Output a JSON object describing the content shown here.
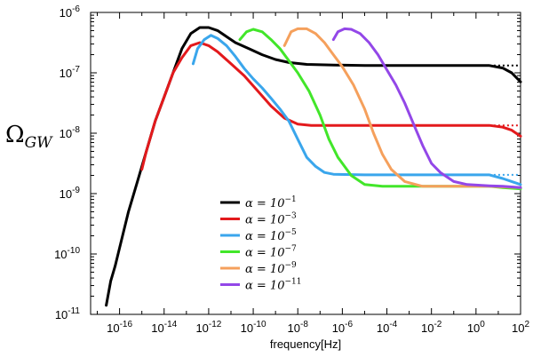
{
  "chart_data": {
    "type": "line",
    "title": "",
    "xlabel": "frequency[Hz]",
    "ylabel_main": "Ω",
    "ylabel_sub": "GW",
    "xscale": "log",
    "yscale": "log",
    "xlim_exp": [
      -17.3,
      2
    ],
    "ylim_exp": [
      -11,
      -6
    ],
    "xticks": [
      {
        "exp": -16,
        "base": "10",
        "sup": "-16"
      },
      {
        "exp": -14,
        "base": "10",
        "sup": "-14"
      },
      {
        "exp": -12,
        "base": "10",
        "sup": "-12"
      },
      {
        "exp": -10,
        "base": "10",
        "sup": "-10"
      },
      {
        "exp": -8,
        "base": "10",
        "sup": "-8"
      },
      {
        "exp": -6,
        "base": "10",
        "sup": "-6"
      },
      {
        "exp": -4,
        "base": "10",
        "sup": "-4"
      },
      {
        "exp": -2,
        "base": "10",
        "sup": "-2"
      },
      {
        "exp": 0,
        "base": "10",
        "sup": "0"
      },
      {
        "exp": 2,
        "base": "10",
        "sup": "2"
      }
    ],
    "yticks": [
      {
        "exp": -11,
        "base": "10",
        "sup": "-11"
      },
      {
        "exp": -10,
        "base": "10",
        "sup": "-10"
      },
      {
        "exp": -9,
        "base": "10",
        "sup": "-9"
      },
      {
        "exp": -8,
        "base": "10",
        "sup": "-8"
      },
      {
        "exp": -7,
        "base": "10",
        "sup": "-7"
      },
      {
        "exp": -6,
        "base": "10",
        "sup": "-6"
      }
    ],
    "grid": false,
    "legend_position": "lower-center",
    "series": [
      {
        "name": "α = 10",
        "name_sup": "−1",
        "color": "#000000",
        "points": [
          [
            -16.6,
            -10.85
          ],
          [
            -16.4,
            -10.45
          ],
          [
            -16.2,
            -10.2
          ],
          [
            -16.0,
            -9.9
          ],
          [
            -15.6,
            -9.3
          ],
          [
            -15.2,
            -8.8
          ],
          [
            -14.8,
            -8.3
          ],
          [
            -14.4,
            -7.8
          ],
          [
            -14.0,
            -7.4
          ],
          [
            -13.6,
            -7.0
          ],
          [
            -13.2,
            -6.6
          ],
          [
            -12.8,
            -6.35
          ],
          [
            -12.4,
            -6.25
          ],
          [
            -12.0,
            -6.25
          ],
          [
            -11.6,
            -6.3
          ],
          [
            -11.2,
            -6.4
          ],
          [
            -10.8,
            -6.5
          ],
          [
            -10.2,
            -6.6
          ],
          [
            -9.6,
            -6.7
          ],
          [
            -9.0,
            -6.78
          ],
          [
            -8.4,
            -6.83
          ],
          [
            -7.6,
            -6.86
          ],
          [
            -6.4,
            -6.87
          ],
          [
            -5.0,
            -6.88
          ],
          [
            -3.0,
            -6.88
          ],
          [
            -1.0,
            -6.88
          ],
          [
            0.6,
            -6.88
          ],
          [
            1.2,
            -6.92
          ],
          [
            1.6,
            -7.0
          ],
          [
            2.0,
            -7.15
          ]
        ],
        "dotted": [
          [
            0.6,
            -6.88
          ],
          [
            2.0,
            -6.88
          ]
        ]
      },
      {
        "name": "α = 10",
        "name_sup": "−3",
        "color": "#e3191c",
        "points": [
          [
            -15.0,
            -8.6
          ],
          [
            -14.8,
            -8.3
          ],
          [
            -14.4,
            -7.8
          ],
          [
            -14.0,
            -7.4
          ],
          [
            -13.6,
            -7.0
          ],
          [
            -13.2,
            -6.75
          ],
          [
            -12.8,
            -6.55
          ],
          [
            -12.4,
            -6.5
          ],
          [
            -12.0,
            -6.55
          ],
          [
            -11.6,
            -6.65
          ],
          [
            -11.0,
            -6.85
          ],
          [
            -10.4,
            -7.05
          ],
          [
            -9.8,
            -7.3
          ],
          [
            -9.2,
            -7.55
          ],
          [
            -8.6,
            -7.75
          ],
          [
            -8.0,
            -7.85
          ],
          [
            -7.4,
            -7.87
          ],
          [
            -6.0,
            -7.87
          ],
          [
            -3.0,
            -7.87
          ],
          [
            -1.0,
            -7.87
          ],
          [
            0.6,
            -7.87
          ],
          [
            1.2,
            -7.9
          ],
          [
            1.6,
            -7.95
          ],
          [
            2.0,
            -8.05
          ]
        ],
        "dotted": [
          [
            0.6,
            -7.87
          ],
          [
            2.0,
            -7.87
          ]
        ]
      },
      {
        "name": "α = 10",
        "name_sup": "−5",
        "color": "#3aa6ec",
        "points": [
          [
            -12.7,
            -6.85
          ],
          [
            -12.5,
            -6.6
          ],
          [
            -12.2,
            -6.45
          ],
          [
            -11.9,
            -6.38
          ],
          [
            -11.6,
            -6.43
          ],
          [
            -11.2,
            -6.55
          ],
          [
            -10.8,
            -6.73
          ],
          [
            -10.4,
            -6.93
          ],
          [
            -10.0,
            -7.1
          ],
          [
            -9.6,
            -7.25
          ],
          [
            -9.2,
            -7.42
          ],
          [
            -8.8,
            -7.6
          ],
          [
            -8.4,
            -7.8
          ],
          [
            -8.0,
            -8.1
          ],
          [
            -7.6,
            -8.4
          ],
          [
            -7.2,
            -8.55
          ],
          [
            -6.8,
            -8.65
          ],
          [
            -6.4,
            -8.68
          ],
          [
            -5.0,
            -8.69
          ],
          [
            -3.0,
            -8.69
          ],
          [
            -1.0,
            -8.69
          ],
          [
            0.6,
            -8.69
          ],
          [
            1.2,
            -8.75
          ],
          [
            1.6,
            -8.8
          ],
          [
            2.0,
            -8.85
          ]
        ],
        "dotted": [
          [
            0.6,
            -8.69
          ],
          [
            2.0,
            -8.69
          ]
        ]
      },
      {
        "name": "α = 10",
        "name_sup": "−7",
        "color": "#42e62a",
        "points": [
          [
            -10.6,
            -6.45
          ],
          [
            -10.3,
            -6.32
          ],
          [
            -10.0,
            -6.28
          ],
          [
            -9.6,
            -6.32
          ],
          [
            -9.2,
            -6.45
          ],
          [
            -8.8,
            -6.6
          ],
          [
            -8.4,
            -6.8
          ],
          [
            -8.0,
            -7.0
          ],
          [
            -7.5,
            -7.3
          ],
          [
            -7.0,
            -7.7
          ],
          [
            -6.6,
            -8.1
          ],
          [
            -6.2,
            -8.4
          ],
          [
            -5.6,
            -8.7
          ],
          [
            -5.0,
            -8.85
          ],
          [
            -4.2,
            -8.88
          ],
          [
            -2.5,
            -8.88
          ],
          [
            -1.0,
            -8.88
          ],
          [
            0.6,
            -8.88
          ],
          [
            1.2,
            -8.9
          ],
          [
            2.0,
            -8.92
          ]
        ]
      },
      {
        "name": "α = 10",
        "name_sup": "−9",
        "color": "#f5a05c",
        "points": [
          [
            -8.6,
            -6.55
          ],
          [
            -8.3,
            -6.32
          ],
          [
            -8.0,
            -6.27
          ],
          [
            -7.6,
            -6.27
          ],
          [
            -7.2,
            -6.35
          ],
          [
            -6.8,
            -6.5
          ],
          [
            -6.4,
            -6.7
          ],
          [
            -6.0,
            -6.9
          ],
          [
            -5.5,
            -7.2
          ],
          [
            -5.0,
            -7.6
          ],
          [
            -4.6,
            -8.0
          ],
          [
            -4.2,
            -8.35
          ],
          [
            -3.8,
            -8.6
          ],
          [
            -3.2,
            -8.8
          ],
          [
            -2.4,
            -8.88
          ],
          [
            -1.0,
            -8.88
          ],
          [
            0.6,
            -8.88
          ],
          [
            1.2,
            -8.89
          ],
          [
            2.0,
            -8.9
          ]
        ]
      },
      {
        "name": "α = 10",
        "name_sup": "−11",
        "color": "#9347e8",
        "points": [
          [
            -6.4,
            -6.45
          ],
          [
            -6.2,
            -6.32
          ],
          [
            -5.9,
            -6.27
          ],
          [
            -5.6,
            -6.28
          ],
          [
            -5.2,
            -6.35
          ],
          [
            -4.8,
            -6.5
          ],
          [
            -4.4,
            -6.7
          ],
          [
            -4.0,
            -6.95
          ],
          [
            -3.6,
            -7.2
          ],
          [
            -3.2,
            -7.5
          ],
          [
            -2.8,
            -7.85
          ],
          [
            -2.4,
            -8.2
          ],
          [
            -2.0,
            -8.5
          ],
          [
            -1.6,
            -8.65
          ],
          [
            -1.0,
            -8.8
          ],
          [
            -0.4,
            -8.85
          ],
          [
            0.6,
            -8.87
          ],
          [
            1.2,
            -8.88
          ],
          [
            2.0,
            -8.9
          ]
        ]
      }
    ]
  }
}
